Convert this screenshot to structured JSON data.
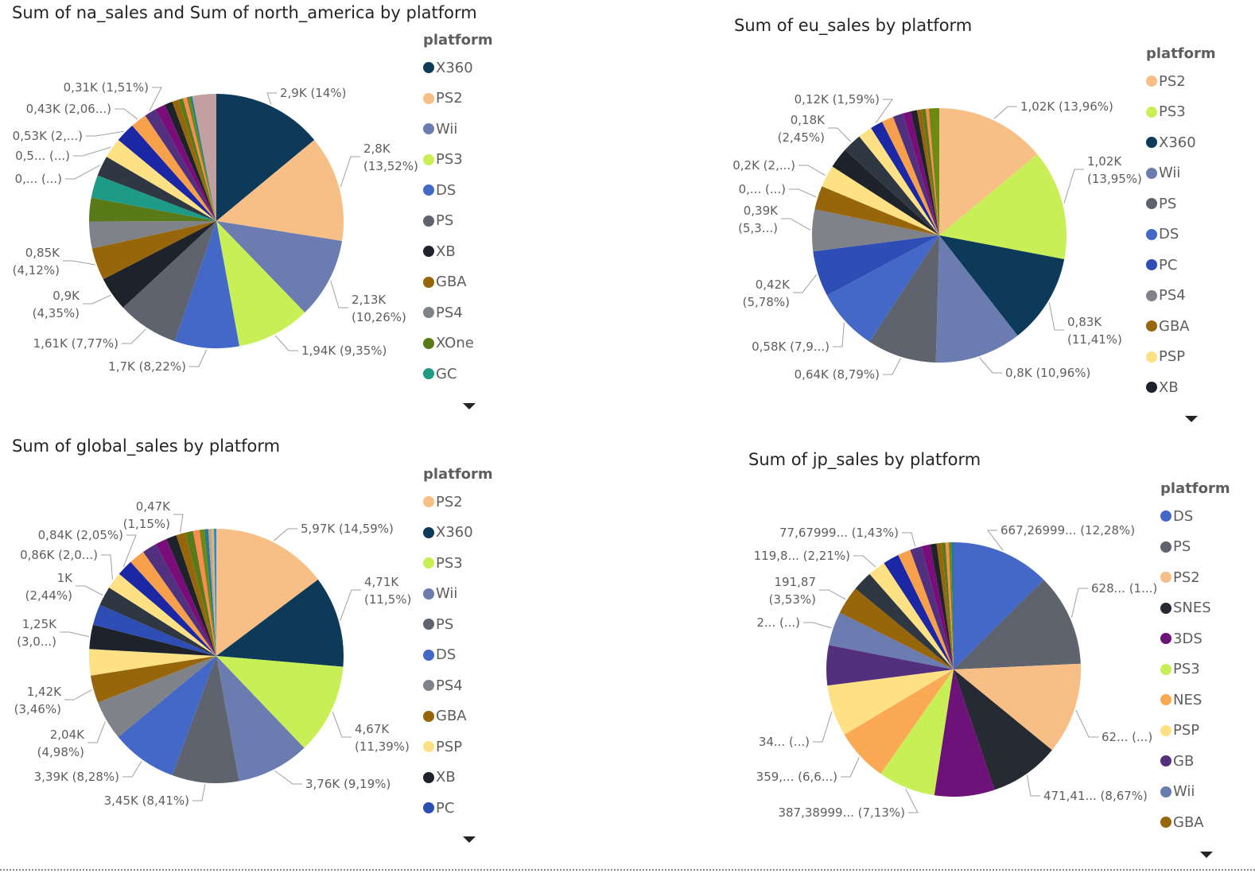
{
  "chart_data": [
    {
      "type": "pie",
      "title": "Sum of na_sales and Sum of north_america by platform",
      "legend_title": "platform",
      "legend_position": "right",
      "legend": [
        "X360",
        "PS2",
        "Wii",
        "PS3",
        "DS",
        "PS",
        "XB",
        "GBA",
        "PS4",
        "XOne",
        "GC"
      ],
      "slices": [
        {
          "name": "X360",
          "value": 14
        },
        {
          "name": "PS2",
          "value": 13.52
        },
        {
          "name": "Wii",
          "value": 10.26
        },
        {
          "name": "PS3",
          "value": 9.35
        },
        {
          "name": "DS",
          "value": 8.22
        },
        {
          "name": "PS",
          "value": 7.77
        },
        {
          "name": "XB",
          "value": 4.35
        },
        {
          "name": "GBA",
          "value": 4.12
        },
        {
          "name": "PS4",
          "value": 3.4
        },
        {
          "name": "XOne",
          "value": 3.0
        },
        {
          "name": "GC",
          "value": 2.9
        },
        {
          "name": "",
          "value": 2.6
        },
        {
          "name": "",
          "value": 2.56
        },
        {
          "name": "",
          "value": 2.5
        },
        {
          "name": "",
          "value": 2.06
        },
        {
          "name": "",
          "value": 1.51
        },
        {
          "name": "",
          "value": 1.3
        },
        {
          "name": "",
          "value": 1.0
        },
        {
          "name": "",
          "value": 0.8
        },
        {
          "name": "",
          "value": 0.6
        },
        {
          "name": "",
          "value": 0.5
        },
        {
          "name": "",
          "value": 0.4
        },
        {
          "name": "",
          "value": 0.3
        },
        {
          "name": "",
          "value": 3.04
        }
      ],
      "data_labels": [
        {
          "slice": 0,
          "lines": [
            "2,9K (14%)"
          ]
        },
        {
          "slice": 1,
          "lines": [
            "2,8K",
            "(13,52%)"
          ]
        },
        {
          "slice": 2,
          "lines": [
            "2,13K",
            "(10,26%)"
          ]
        },
        {
          "slice": 3,
          "lines": [
            "1,94K (9,35%)"
          ]
        },
        {
          "slice": 4,
          "lines": [
            "1,7K (8,22%)"
          ]
        },
        {
          "slice": 5,
          "lines": [
            "1,61K (7,77%)"
          ]
        },
        {
          "slice": 6,
          "lines": [
            "0,9K",
            "(4,35%)"
          ]
        },
        {
          "slice": 7,
          "lines": [
            "0,85K",
            "(4,12%)"
          ]
        },
        {
          "slice": 11,
          "lines": [
            "0,... (...)"
          ]
        },
        {
          "slice": 12,
          "lines": [
            "0,5... (...)"
          ]
        },
        {
          "slice": 13,
          "lines": [
            "0,53K (2,...)"
          ]
        },
        {
          "slice": 14,
          "lines": [
            "0,43K (2,06...)"
          ]
        },
        {
          "slice": 15,
          "lines": [
            "0,31K (1,51%)"
          ]
        }
      ]
    },
    {
      "type": "pie",
      "title": "Sum of eu_sales by platform",
      "legend_title": "platform",
      "legend_position": "right",
      "legend": [
        "PS2",
        "PS3",
        "X360",
        "Wii",
        "PS",
        "DS",
        "PC",
        "PS4",
        "GBA",
        "PSP",
        "XB"
      ],
      "slices": [
        {
          "name": "PS2",
          "value": 13.96
        },
        {
          "name": "PS3",
          "value": 13.95
        },
        {
          "name": "X360",
          "value": 11.41
        },
        {
          "name": "Wii",
          "value": 10.96
        },
        {
          "name": "PS",
          "value": 8.79
        },
        {
          "name": "DS",
          "value": 7.9
        },
        {
          "name": "PC",
          "value": 5.78
        },
        {
          "name": "PS4",
          "value": 5.3
        },
        {
          "name": "GBA",
          "value": 3.0
        },
        {
          "name": "PSP",
          "value": 2.8
        },
        {
          "name": "XB",
          "value": 2.6
        },
        {
          "name": "",
          "value": 2.45
        },
        {
          "name": "",
          "value": 1.8
        },
        {
          "name": "",
          "value": 1.59
        },
        {
          "name": "",
          "value": 1.5
        },
        {
          "name": "",
          "value": 1.3
        },
        {
          "name": "",
          "value": 1.0
        },
        {
          "name": "",
          "value": 0.8
        },
        {
          "name": "",
          "value": 0.6
        },
        {
          "name": "",
          "value": 0.5
        },
        {
          "name": "",
          "value": 0.4
        },
        {
          "name": "",
          "value": 1.3
        }
      ],
      "data_labels": [
        {
          "slice": 0,
          "lines": [
            "1,02K (13,96%)"
          ]
        },
        {
          "slice": 1,
          "lines": [
            "1,02K",
            "(13,95%)"
          ]
        },
        {
          "slice": 2,
          "lines": [
            "0,83K",
            "(11,41%)"
          ]
        },
        {
          "slice": 3,
          "lines": [
            "0,8K (10,96%)"
          ]
        },
        {
          "slice": 4,
          "lines": [
            "0,64K (8,79%)"
          ]
        },
        {
          "slice": 5,
          "lines": [
            "0,58K (7,9...)"
          ]
        },
        {
          "slice": 6,
          "lines": [
            "0,42K",
            "(5,78%)"
          ]
        },
        {
          "slice": 7,
          "lines": [
            "0,39K",
            "(5,3...)"
          ]
        },
        {
          "slice": 8,
          "lines": [
            "0,... (...)"
          ]
        },
        {
          "slice": 9,
          "lines": [
            "0,2K (2,...)"
          ]
        },
        {
          "slice": 11,
          "lines": [
            "0,18K",
            "(2,45%)"
          ]
        },
        {
          "slice": 13,
          "lines": [
            "0,12K (1,59%)"
          ]
        }
      ]
    },
    {
      "type": "pie",
      "title": "Sum of global_sales by platform",
      "legend_title": "platform",
      "legend_position": "right",
      "legend": [
        "PS2",
        "X360",
        "PS3",
        "Wii",
        "PS",
        "DS",
        "PS4",
        "GBA",
        "PSP",
        "XB",
        "PC"
      ],
      "slices": [
        {
          "name": "PS2",
          "value": 14.59
        },
        {
          "name": "X360",
          "value": 11.5
        },
        {
          "name": "PS3",
          "value": 11.39
        },
        {
          "name": "Wii",
          "value": 9.19
        },
        {
          "name": "PS",
          "value": 8.41
        },
        {
          "name": "DS",
          "value": 8.28
        },
        {
          "name": "PS4",
          "value": 4.98
        },
        {
          "name": "GBA",
          "value": 3.46
        },
        {
          "name": "PSP",
          "value": 3.3
        },
        {
          "name": "XB",
          "value": 3.05
        },
        {
          "name": "PC",
          "value": 2.6
        },
        {
          "name": "",
          "value": 2.44
        },
        {
          "name": "",
          "value": 2.1
        },
        {
          "name": "",
          "value": 2.05
        },
        {
          "name": "",
          "value": 2.0
        },
        {
          "name": "",
          "value": 1.8
        },
        {
          "name": "",
          "value": 1.5
        },
        {
          "name": "",
          "value": 1.3
        },
        {
          "name": "",
          "value": 1.15
        },
        {
          "name": "",
          "value": 1.0
        },
        {
          "name": "",
          "value": 0.8
        },
        {
          "name": "",
          "value": 0.6
        },
        {
          "name": "",
          "value": 0.5
        },
        {
          "name": "",
          "value": 0.4
        },
        {
          "name": "",
          "value": 0.3
        },
        {
          "name": "",
          "value": 0.3
        }
      ],
      "data_labels": [
        {
          "slice": 0,
          "lines": [
            "5,97K (14,59%)"
          ]
        },
        {
          "slice": 1,
          "lines": [
            "4,71K",
            "(11,5%)"
          ]
        },
        {
          "slice": 2,
          "lines": [
            "4,67K",
            "(11,39%)"
          ]
        },
        {
          "slice": 3,
          "lines": [
            "3,76K (9,19%)"
          ]
        },
        {
          "slice": 4,
          "lines": [
            "3,45K (8,41%)"
          ]
        },
        {
          "slice": 5,
          "lines": [
            "3,39K (8,28%)"
          ]
        },
        {
          "slice": 6,
          "lines": [
            "2,04K",
            "(4,98%)"
          ]
        },
        {
          "slice": 7,
          "lines": [
            "1,42K",
            "(3,46%)"
          ]
        },
        {
          "slice": 9,
          "lines": [
            "1,25K",
            "(3,0...)"
          ]
        },
        {
          "slice": 11,
          "lines": [
            "1K",
            "(2,44%)"
          ]
        },
        {
          "slice": 12,
          "lines": [
            "0,86K (2,0...)"
          ]
        },
        {
          "slice": 13,
          "lines": [
            "0,84K (2,05%)"
          ]
        },
        {
          "slice": 18,
          "lines": [
            "0,47K",
            "(1,15%)"
          ]
        }
      ]
    },
    {
      "type": "pie",
      "title": "Sum of jp_sales by platform",
      "legend_title": "platform",
      "legend_position": "right",
      "legend": [
        "DS",
        "PS",
        "PS2",
        "SNES",
        "3DS",
        "PS3",
        "NES",
        "PSP",
        "GB",
        "Wii",
        "GBA"
      ],
      "slices": [
        {
          "name": "DS",
          "value": 12.28
        },
        {
          "name": "PS",
          "value": 11.5
        },
        {
          "name": "PS2",
          "value": 11.4
        },
        {
          "name": "SNES",
          "value": 8.67
        },
        {
          "name": "3DS",
          "value": 7.5
        },
        {
          "name": "PS3",
          "value": 7.13
        },
        {
          "name": "NES",
          "value": 6.6
        },
        {
          "name": "PSP",
          "value": 6.4
        },
        {
          "name": "GB",
          "value": 5.0
        },
        {
          "name": "Wii",
          "value": 4.2
        },
        {
          "name": "GBA",
          "value": 3.53
        },
        {
          "name": "",
          "value": 2.5
        },
        {
          "name": "",
          "value": 2.21
        },
        {
          "name": "",
          "value": 2.0
        },
        {
          "name": "",
          "value": 1.6
        },
        {
          "name": "",
          "value": 1.43
        },
        {
          "name": "",
          "value": 1.1
        },
        {
          "name": "",
          "value": 0.8
        },
        {
          "name": "",
          "value": 0.6
        },
        {
          "name": "",
          "value": 0.5
        },
        {
          "name": "",
          "value": 0.4
        },
        {
          "name": "",
          "value": 0.3
        },
        {
          "name": "",
          "value": 0.3
        }
      ],
      "data_labels": [
        {
          "slice": 0,
          "lines": [
            "667,26999... (12,28%)"
          ]
        },
        {
          "slice": 1,
          "lines": [
            "628... (1...)"
          ]
        },
        {
          "slice": 2,
          "lines": [
            "62... (...)"
          ]
        },
        {
          "slice": 3,
          "lines": [
            "471,41... (8,67%)"
          ]
        },
        {
          "slice": 5,
          "lines": [
            "387,38999... (7,13%)"
          ]
        },
        {
          "slice": 6,
          "lines": [
            "359,... (6,6...)"
          ]
        },
        {
          "slice": 7,
          "lines": [
            "34... (...)"
          ]
        },
        {
          "slice": 9,
          "lines": [
            "2... (...)"
          ]
        },
        {
          "slice": 10,
          "lines": [
            "191,87",
            "(3,53%)"
          ]
        },
        {
          "slice": 12,
          "lines": [
            "119,8... (2,21%)"
          ]
        },
        {
          "slice": 15,
          "lines": [
            "77,67999... (1,43%)"
          ]
        }
      ]
    }
  ],
  "palette": {
    "X360": "#0e3a5a",
    "PS2": "#f7bf85",
    "Wii": "#6b7cb0",
    "PS3": "#c8ef55",
    "DS": "#4468c8",
    "PS": "#5e636d",
    "XB": "#1e222b",
    "GBA": "#98660a",
    "PS4": "#7f8289",
    "XOne": "#5a7a1a",
    "GC": "#1e9b86",
    "PC": "#2e4eb6",
    "PSP": "#fde184",
    "SNES": "#262a33",
    "3DS": "#6c1278",
    "NES": "#fba955",
    "GB": "#53307e",
    "extra": [
      "#2f3742",
      "#fde184",
      "#1c27a6",
      "#f6a04b",
      "#50307f",
      "#7a0d79",
      "#1e222b",
      "#98660a",
      "#5a7a1a",
      "#fb8b50",
      "#6a8a12",
      "#2a7a8a",
      "#c2a0a0",
      "#e8b84a",
      "#118dff",
      "#b07090"
    ]
  }
}
